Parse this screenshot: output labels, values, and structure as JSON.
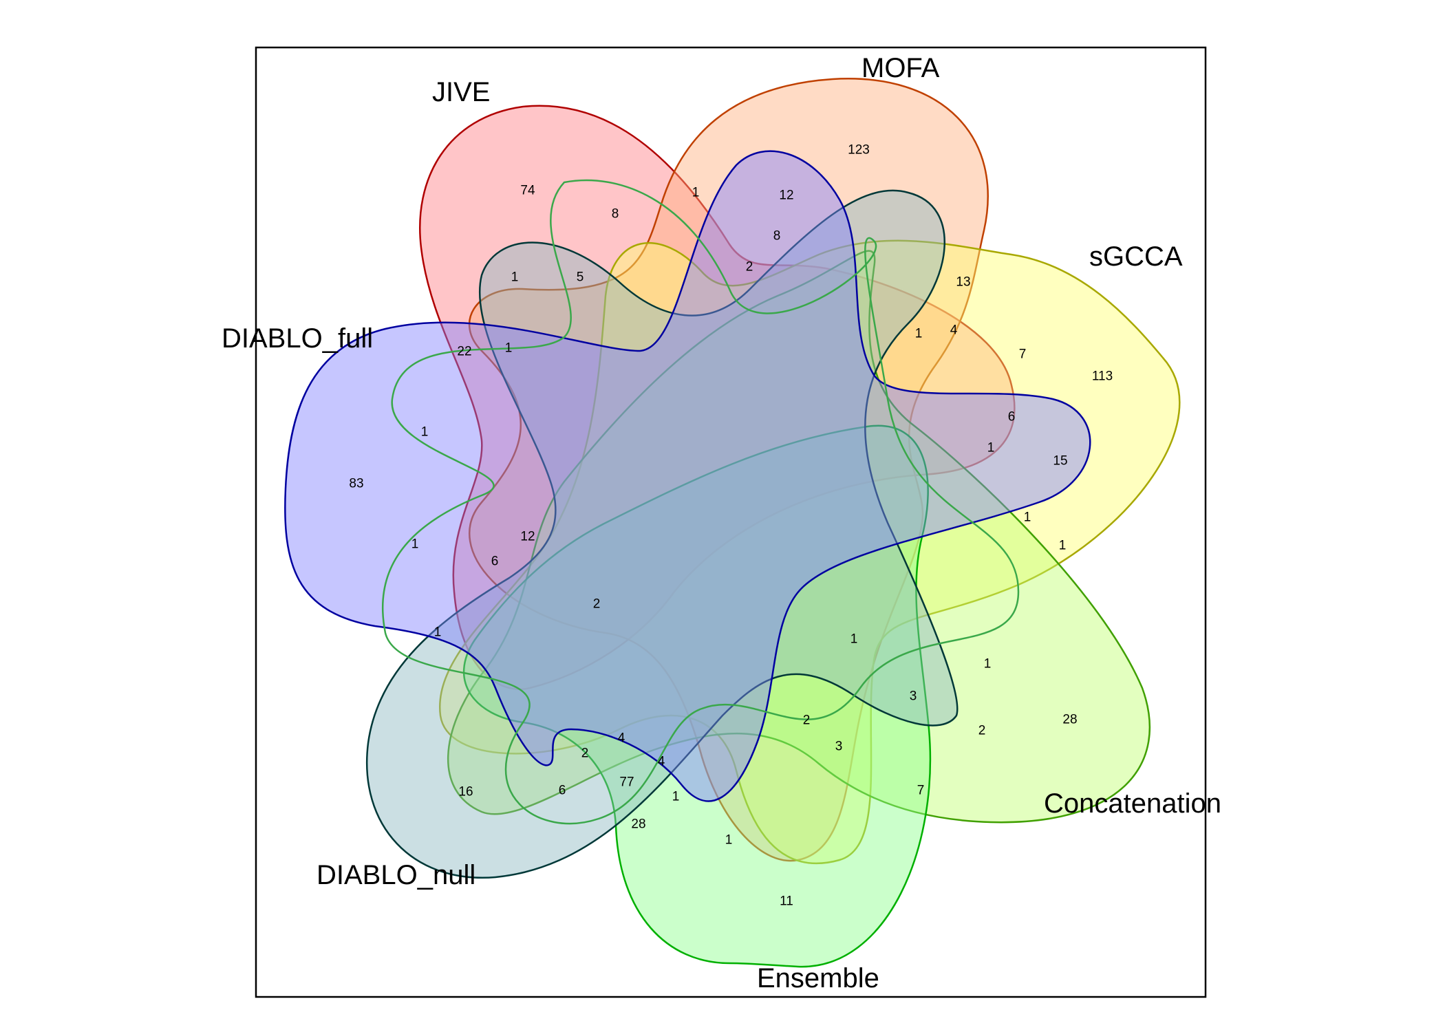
{
  "diagram": {
    "type": "venn",
    "sets": [
      {
        "name": "JIVE",
        "fill": "#ff7f86",
        "stroke": "#b00000"
      },
      {
        "name": "MOFA",
        "fill": "#ffb07e",
        "stroke": "#c04000"
      },
      {
        "name": "sGCCA",
        "fill": "#ffff70",
        "stroke": "#a8a800"
      },
      {
        "name": "Concatenation",
        "fill": "#c0ff70",
        "stroke": "#40a000"
      },
      {
        "name": "Ensemble",
        "fill": "#8cff8c",
        "stroke": "#00b000"
      },
      {
        "name": "DIABLO_null",
        "fill": "#8cb8c0",
        "stroke": "#003838"
      },
      {
        "name": "DIABLO_full",
        "fill": "#8080ff",
        "stroke": "#0000a0"
      }
    ],
    "region_counts": [
      "74",
      "1",
      "8",
      "123",
      "12",
      "8",
      "2",
      "1",
      "5",
      "13",
      "1",
      "4",
      "7",
      "113",
      "6",
      "1",
      "15",
      "1",
      "1",
      "22",
      "1",
      "1",
      "83",
      "1",
      "12",
      "6",
      "2",
      "1",
      "1",
      "1",
      "3",
      "2",
      "28",
      "2",
      "3",
      "7",
      "4",
      "2",
      "4",
      "77",
      "6",
      "16",
      "1",
      "28",
      "1",
      "11"
    ]
  }
}
